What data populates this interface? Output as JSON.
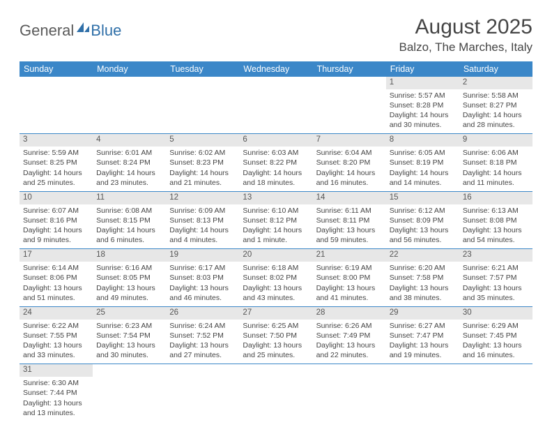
{
  "logo": {
    "text1": "General",
    "text2": "Blue",
    "accent_color": "#2f6fa8"
  },
  "title": "August 2025",
  "location": "Balzo, The Marches, Italy",
  "header_bg": "#3b87c8",
  "daynum_bg": "#e7e7e7",
  "weekdays": [
    "Sunday",
    "Monday",
    "Tuesday",
    "Wednesday",
    "Thursday",
    "Friday",
    "Saturday"
  ],
  "weeks": [
    [
      null,
      null,
      null,
      null,
      null,
      {
        "n": "1",
        "sunrise": "5:57 AM",
        "sunset": "8:28 PM",
        "daylight": "14 hours and 30 minutes."
      },
      {
        "n": "2",
        "sunrise": "5:58 AM",
        "sunset": "8:27 PM",
        "daylight": "14 hours and 28 minutes."
      }
    ],
    [
      {
        "n": "3",
        "sunrise": "5:59 AM",
        "sunset": "8:25 PM",
        "daylight": "14 hours and 25 minutes."
      },
      {
        "n": "4",
        "sunrise": "6:01 AM",
        "sunset": "8:24 PM",
        "daylight": "14 hours and 23 minutes."
      },
      {
        "n": "5",
        "sunrise": "6:02 AM",
        "sunset": "8:23 PM",
        "daylight": "14 hours and 21 minutes."
      },
      {
        "n": "6",
        "sunrise": "6:03 AM",
        "sunset": "8:22 PM",
        "daylight": "14 hours and 18 minutes."
      },
      {
        "n": "7",
        "sunrise": "6:04 AM",
        "sunset": "8:20 PM",
        "daylight": "14 hours and 16 minutes."
      },
      {
        "n": "8",
        "sunrise": "6:05 AM",
        "sunset": "8:19 PM",
        "daylight": "14 hours and 14 minutes."
      },
      {
        "n": "9",
        "sunrise": "6:06 AM",
        "sunset": "8:18 PM",
        "daylight": "14 hours and 11 minutes."
      }
    ],
    [
      {
        "n": "10",
        "sunrise": "6:07 AM",
        "sunset": "8:16 PM",
        "daylight": "14 hours and 9 minutes."
      },
      {
        "n": "11",
        "sunrise": "6:08 AM",
        "sunset": "8:15 PM",
        "daylight": "14 hours and 6 minutes."
      },
      {
        "n": "12",
        "sunrise": "6:09 AM",
        "sunset": "8:13 PM",
        "daylight": "14 hours and 4 minutes."
      },
      {
        "n": "13",
        "sunrise": "6:10 AM",
        "sunset": "8:12 PM",
        "daylight": "14 hours and 1 minute."
      },
      {
        "n": "14",
        "sunrise": "6:11 AM",
        "sunset": "8:11 PM",
        "daylight": "13 hours and 59 minutes."
      },
      {
        "n": "15",
        "sunrise": "6:12 AM",
        "sunset": "8:09 PM",
        "daylight": "13 hours and 56 minutes."
      },
      {
        "n": "16",
        "sunrise": "6:13 AM",
        "sunset": "8:08 PM",
        "daylight": "13 hours and 54 minutes."
      }
    ],
    [
      {
        "n": "17",
        "sunrise": "6:14 AM",
        "sunset": "8:06 PM",
        "daylight": "13 hours and 51 minutes."
      },
      {
        "n": "18",
        "sunrise": "6:16 AM",
        "sunset": "8:05 PM",
        "daylight": "13 hours and 49 minutes."
      },
      {
        "n": "19",
        "sunrise": "6:17 AM",
        "sunset": "8:03 PM",
        "daylight": "13 hours and 46 minutes."
      },
      {
        "n": "20",
        "sunrise": "6:18 AM",
        "sunset": "8:02 PM",
        "daylight": "13 hours and 43 minutes."
      },
      {
        "n": "21",
        "sunrise": "6:19 AM",
        "sunset": "8:00 PM",
        "daylight": "13 hours and 41 minutes."
      },
      {
        "n": "22",
        "sunrise": "6:20 AM",
        "sunset": "7:58 PM",
        "daylight": "13 hours and 38 minutes."
      },
      {
        "n": "23",
        "sunrise": "6:21 AM",
        "sunset": "7:57 PM",
        "daylight": "13 hours and 35 minutes."
      }
    ],
    [
      {
        "n": "24",
        "sunrise": "6:22 AM",
        "sunset": "7:55 PM",
        "daylight": "13 hours and 33 minutes."
      },
      {
        "n": "25",
        "sunrise": "6:23 AM",
        "sunset": "7:54 PM",
        "daylight": "13 hours and 30 minutes."
      },
      {
        "n": "26",
        "sunrise": "6:24 AM",
        "sunset": "7:52 PM",
        "daylight": "13 hours and 27 minutes."
      },
      {
        "n": "27",
        "sunrise": "6:25 AM",
        "sunset": "7:50 PM",
        "daylight": "13 hours and 25 minutes."
      },
      {
        "n": "28",
        "sunrise": "6:26 AM",
        "sunset": "7:49 PM",
        "daylight": "13 hours and 22 minutes."
      },
      {
        "n": "29",
        "sunrise": "6:27 AM",
        "sunset": "7:47 PM",
        "daylight": "13 hours and 19 minutes."
      },
      {
        "n": "30",
        "sunrise": "6:29 AM",
        "sunset": "7:45 PM",
        "daylight": "13 hours and 16 minutes."
      }
    ],
    [
      {
        "n": "31",
        "sunrise": "6:30 AM",
        "sunset": "7:44 PM",
        "daylight": "13 hours and 13 minutes."
      },
      null,
      null,
      null,
      null,
      null,
      null
    ]
  ],
  "labels": {
    "sunrise": "Sunrise:",
    "sunset": "Sunset:",
    "daylight": "Daylight:"
  }
}
